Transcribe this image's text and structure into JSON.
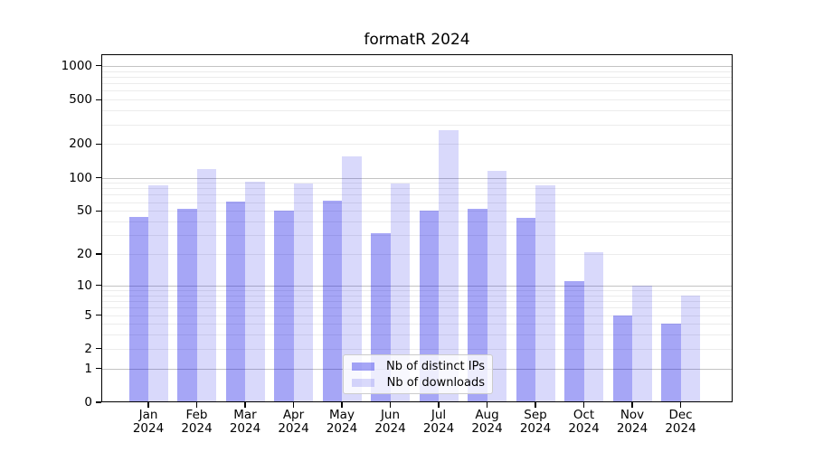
{
  "chart_data": {
    "type": "bar",
    "title": "formatR 2024",
    "categories": [
      "Jan",
      "Feb",
      "Mar",
      "Apr",
      "May",
      "Jun",
      "Jul",
      "Aug",
      "Sep",
      "Oct",
      "Nov",
      "Dec"
    ],
    "category_year": "2024",
    "series": [
      {
        "name": "Nb of distinct IPs",
        "color": "rgba(0,0,230,0.35)",
        "values": [
          44,
          52,
          61,
          50,
          62,
          31,
          50,
          52,
          43,
          11,
          5,
          4
        ]
      },
      {
        "name": "Nb of downloads",
        "color": "rgba(0,0,230,0.15)",
        "values": [
          85,
          120,
          92,
          88,
          155,
          88,
          265,
          115,
          85,
          21,
          10,
          8
        ]
      }
    ],
    "xlabel": "",
    "ylabel": "",
    "yscale": "log10(value+1)",
    "y_tick_labels": [
      0,
      1,
      2,
      5,
      10,
      20,
      50,
      100,
      200,
      500,
      1000
    ],
    "ylim": [
      0,
      1250
    ],
    "grid": {
      "minor_on": true,
      "major_on": true
    },
    "legend_position": "lower center"
  },
  "colors": {
    "minor_grid": "#ececec",
    "major_grid": "#c3c3c3",
    "spine": "#000000",
    "legend_border": "#cccccc",
    "legend_background": "rgba(255,255,255,0.8)"
  }
}
